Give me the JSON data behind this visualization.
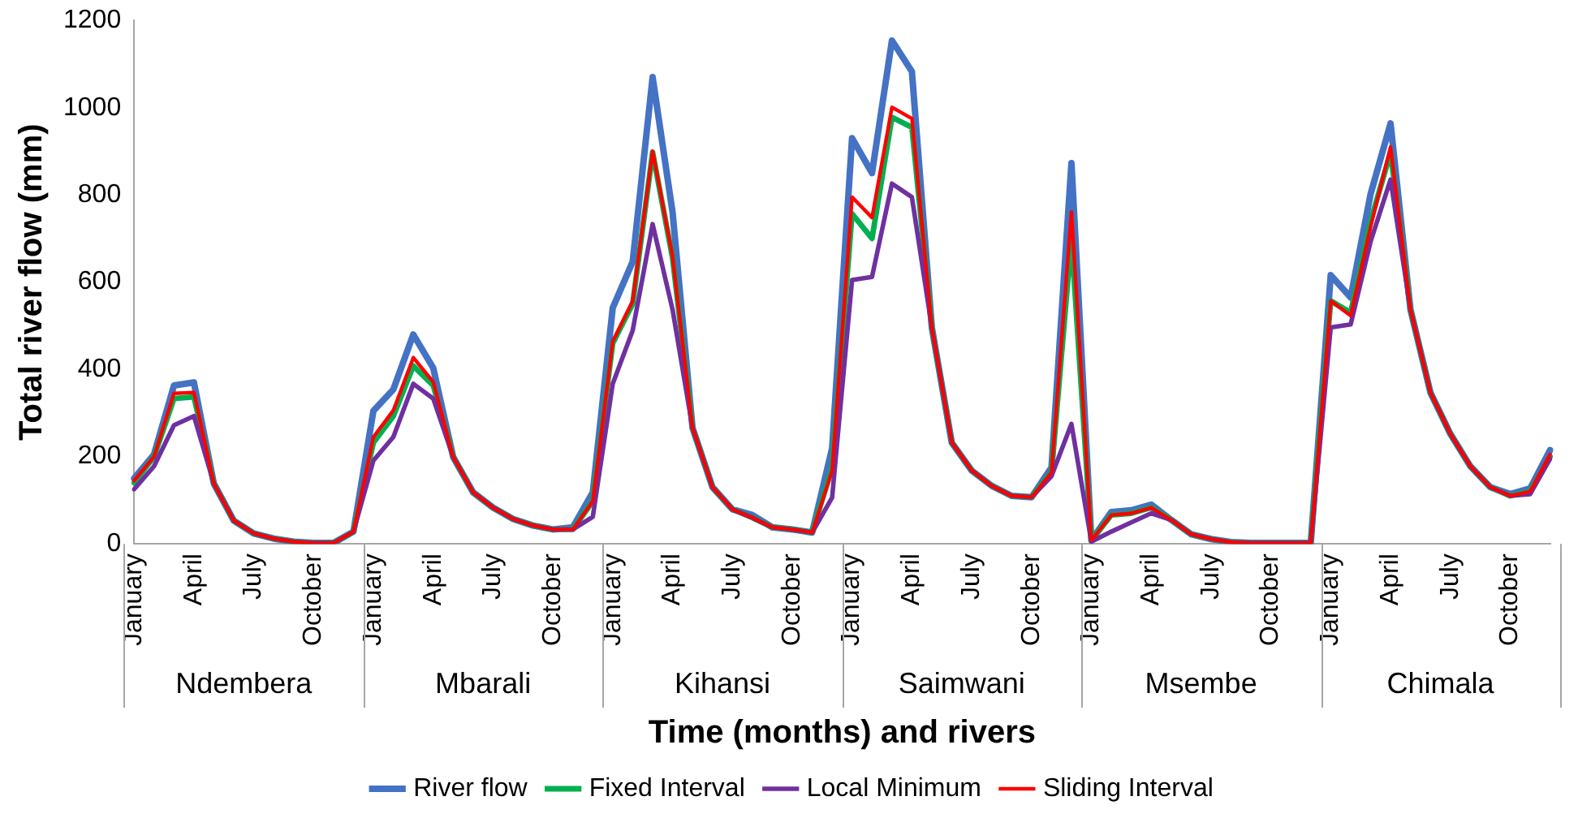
{
  "chart_data": {
    "type": "line",
    "xlabel": "Time (months) and rivers",
    "ylabel": "Total river flow (mm)",
    "categories": [
      "January",
      null,
      null,
      "April",
      null,
      null,
      "July",
      null,
      null,
      "October",
      null,
      null,
      "January",
      null,
      null,
      "April",
      null,
      null,
      "July",
      null,
      null,
      "October",
      null,
      null,
      "January",
      null,
      null,
      "April",
      null,
      null,
      "July",
      null,
      null,
      "October",
      null,
      null,
      "January",
      null,
      null,
      "April",
      null,
      null,
      "July",
      null,
      null,
      "October",
      null,
      null,
      "January",
      null,
      null,
      "April",
      null,
      null,
      "July",
      null,
      null,
      "October",
      null,
      null,
      "January",
      null,
      null,
      "April",
      null,
      null,
      "July",
      null,
      null,
      "October",
      null,
      null
    ],
    "annotations": [
      "Ndembera",
      "Mbarali",
      "Kihansi",
      "Saimwani",
      "Msembe",
      "Chimala"
    ],
    "ylim": [
      0,
      1200
    ],
    "yticks": [
      0,
      200,
      400,
      600,
      800,
      1000,
      1200
    ],
    "grid": false,
    "legend": "bottom",
    "marker": "none",
    "line_style": "solid",
    "series": [
      {
        "name": "River flow",
        "color": "#4472c4",
        "values": [
          150,
          205,
          363,
          370,
          138,
          53,
          24,
          12,
          5,
          2,
          2,
          28,
          305,
          354,
          480,
          403,
          199,
          118,
          83,
          57,
          42,
          33,
          38,
          118,
          541,
          647,
          1070,
          760,
          266,
          130,
          79,
          66,
          38,
          33,
          26,
          219,
          930,
          850,
          1154,
          1083,
          496,
          232,
          168,
          133,
          110,
          107,
          175,
          873,
          8,
          73,
          77,
          90,
          55,
          22,
          11,
          4,
          2,
          2,
          2,
          2,
          616,
          565,
          802,
          964,
          537,
          347,
          252,
          178,
          130,
          114,
          127,
          215
        ]
      },
      {
        "name": "Fixed Interval",
        "color": "#00b050",
        "values": [
          140,
          200,
          333,
          337,
          138,
          53,
          24,
          12,
          5,
          2,
          2,
          28,
          232,
          293,
          408,
          363,
          199,
          118,
          83,
          57,
          42,
          33,
          33,
          98,
          460,
          550,
          898,
          655,
          266,
          130,
          79,
          60,
          38,
          33,
          26,
          175,
          757,
          700,
          978,
          955,
          496,
          232,
          168,
          133,
          110,
          107,
          164,
          700,
          8,
          66,
          70,
          83,
          55,
          22,
          11,
          4,
          2,
          2,
          2,
          2,
          557,
          530,
          740,
          897,
          537,
          347,
          252,
          178,
          130,
          110,
          120,
          200
        ]
      },
      {
        "name": "Local Minimum",
        "color": "#7030a0",
        "values": [
          125,
          178,
          272,
          293,
          138,
          53,
          24,
          12,
          5,
          2,
          2,
          28,
          191,
          245,
          367,
          333,
          199,
          118,
          83,
          57,
          42,
          33,
          33,
          62,
          367,
          489,
          733,
          537,
          266,
          130,
          79,
          60,
          38,
          33,
          26,
          106,
          605,
          612,
          826,
          795,
          496,
          232,
          168,
          133,
          110,
          107,
          155,
          275,
          5,
          28,
          49,
          70,
          55,
          22,
          11,
          4,
          2,
          2,
          2,
          2,
          496,
          503,
          693,
          835,
          537,
          347,
          252,
          178,
          130,
          110,
          114,
          195
        ]
      },
      {
        "name": "Sliding Interval",
        "color": "#ff0000",
        "values": [
          145,
          200,
          345,
          347,
          138,
          53,
          24,
          12,
          5,
          2,
          2,
          28,
          245,
          306,
          427,
          371,
          199,
          118,
          83,
          57,
          42,
          33,
          33,
          98,
          464,
          557,
          900,
          659,
          266,
          130,
          79,
          60,
          38,
          33,
          26,
          168,
          795,
          748,
          1001,
          975,
          496,
          232,
          168,
          133,
          110,
          107,
          164,
          761,
          8,
          66,
          70,
          83,
          55,
          22,
          11,
          4,
          2,
          2,
          2,
          2,
          557,
          523,
          727,
          910,
          537,
          347,
          252,
          178,
          130,
          110,
          120,
          205
        ]
      }
    ]
  }
}
